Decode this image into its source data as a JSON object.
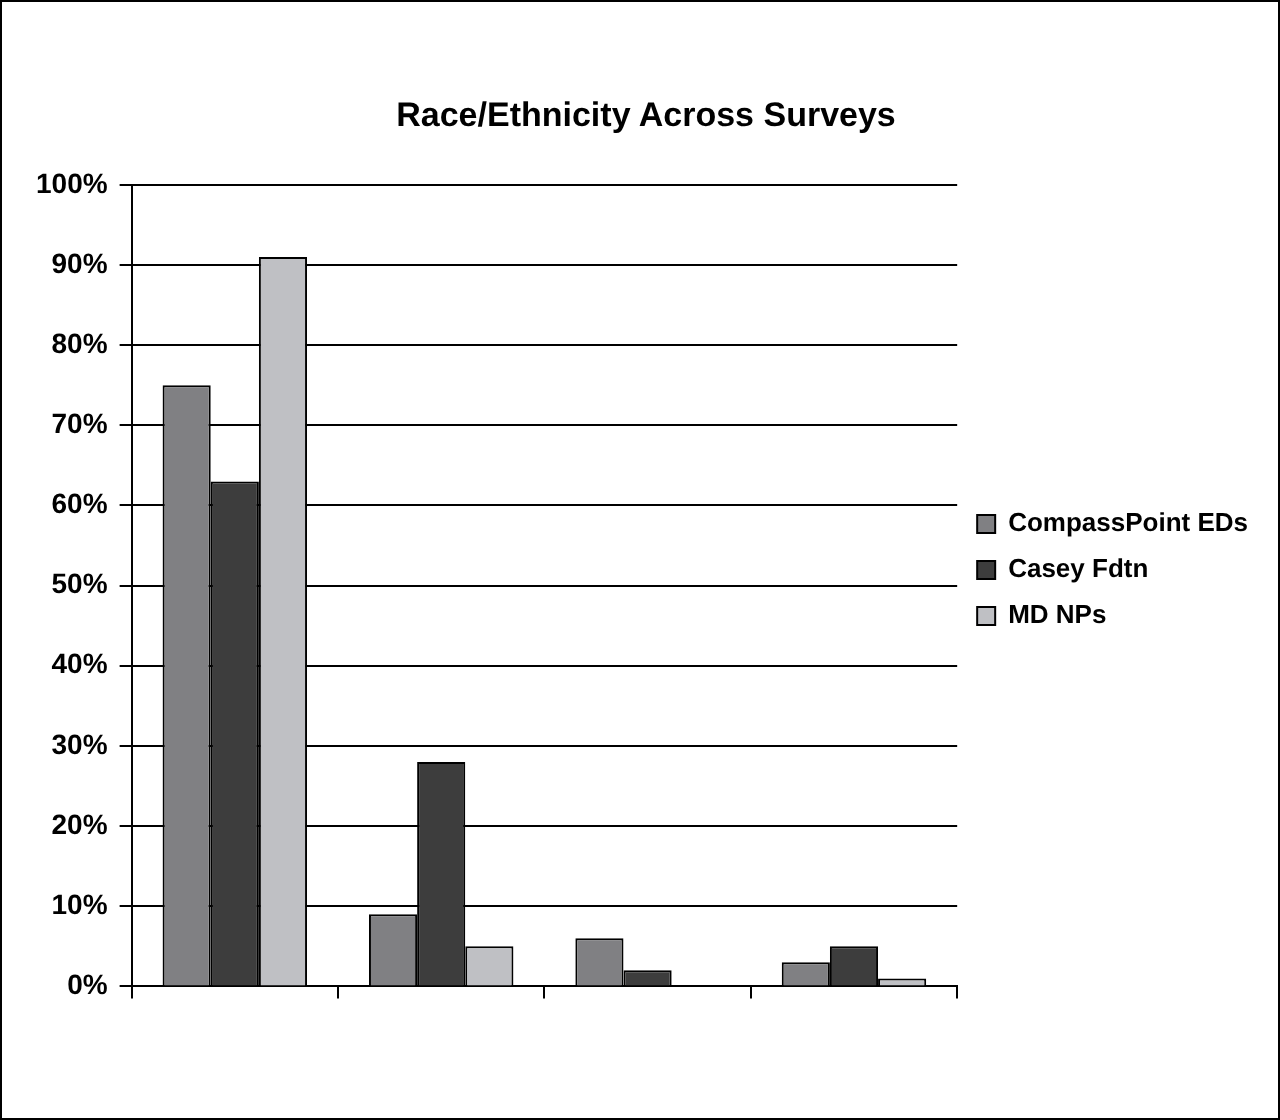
{
  "chart_data": {
    "type": "bar",
    "title": "Race/Ethnicity Across Surveys",
    "categories": [
      null,
      null,
      null,
      null
    ],
    "series": [
      {
        "name": "CompassPoint EDs",
        "color": "#808083",
        "values": [
          75,
          9,
          6,
          3
        ]
      },
      {
        "name": "Casey Fdtn",
        "color": "#3d3d3d",
        "values": [
          63,
          28,
          2,
          5
        ]
      },
      {
        "name": "MD NPs",
        "color": "#bfc0c4",
        "values": [
          91,
          5,
          null,
          1
        ]
      }
    ],
    "ylim": [
      0,
      100
    ],
    "yticks": [
      {
        "value": 0,
        "label": "0%"
      },
      {
        "value": 10,
        "label": "10%"
      },
      {
        "value": 20,
        "label": "20%"
      },
      {
        "value": 30,
        "label": "30%"
      },
      {
        "value": 40,
        "label": "40%"
      },
      {
        "value": 50,
        "label": "50%"
      },
      {
        "value": 60,
        "label": "60%"
      },
      {
        "value": 70,
        "label": "70%"
      },
      {
        "value": 80,
        "label": "80%"
      },
      {
        "value": 90,
        "label": "90%"
      },
      {
        "value": 100,
        "label": "100%"
      }
    ],
    "grid": "y",
    "legend": "right"
  }
}
